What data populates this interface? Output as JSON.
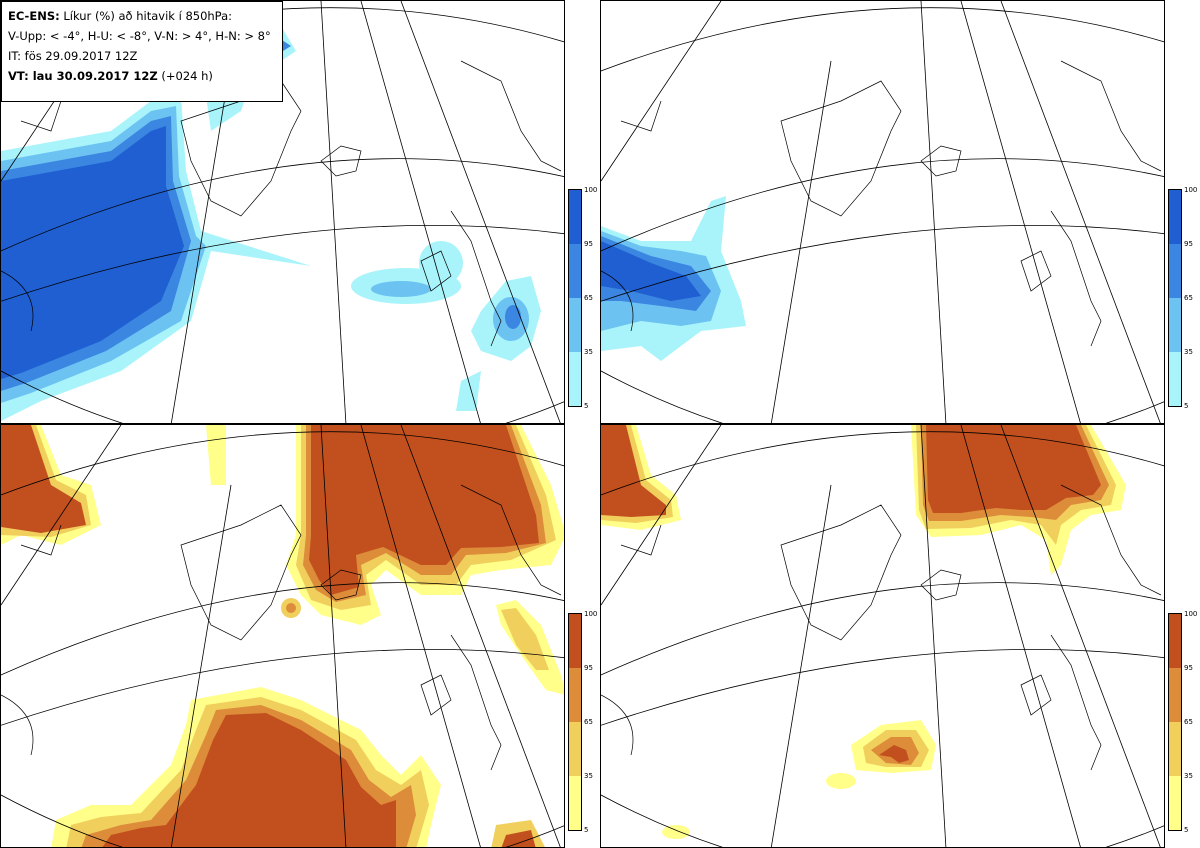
{
  "header": {
    "model": "EC-ENS:",
    "title": "Líkur (%) að hitavik í 850hPa:",
    "thresholds": "V-Upp: < -4°, H-U: < -8°, V-N: > 4°, H-N: > 8°",
    "initial_time": "IT: fös 29.09.2017 12Z",
    "valid_prefix": "VT: lau 30.09.2017 12Z",
    "valid_offset": "(+024 h)"
  },
  "colorbars": {
    "cold": {
      "ticks": [
        "100",
        "95",
        "65",
        "35",
        "5"
      ],
      "colors": [
        "#1f5fd1",
        "#3b86e0",
        "#6cc3f2",
        "#a8f4fa"
      ]
    },
    "warm": {
      "ticks": [
        "100",
        "95",
        "65",
        "35",
        "5"
      ],
      "colors": [
        "#c2501e",
        "#dd8c3a",
        "#f1cf5c",
        "#ffff8a"
      ]
    }
  },
  "panels": [
    {
      "id": "V-Upp",
      "scheme": "cold"
    },
    {
      "id": "H-U",
      "scheme": "cold"
    },
    {
      "id": "V-N",
      "scheme": "warm"
    },
    {
      "id": "H-N",
      "scheme": "warm"
    }
  ]
}
